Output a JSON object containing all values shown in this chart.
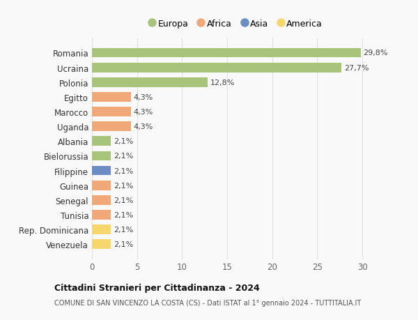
{
  "categories": [
    "Venezuela",
    "Rep. Dominicana",
    "Tunisia",
    "Senegal",
    "Guinea",
    "Filippine",
    "Bielorussia",
    "Albania",
    "Uganda",
    "Marocco",
    "Egitto",
    "Polonia",
    "Ucraina",
    "Romania"
  ],
  "values": [
    2.1,
    2.1,
    2.1,
    2.1,
    2.1,
    2.1,
    2.1,
    2.1,
    4.3,
    4.3,
    4.3,
    12.8,
    27.7,
    29.8
  ],
  "labels": [
    "2,1%",
    "2,1%",
    "2,1%",
    "2,1%",
    "2,1%",
    "2,1%",
    "2,1%",
    "2,1%",
    "4,3%",
    "4,3%",
    "4,3%",
    "12,8%",
    "27,7%",
    "29,8%"
  ],
  "colors": [
    "#f5d76e",
    "#f5d76e",
    "#f0a878",
    "#f0a878",
    "#f0a878",
    "#6b8dc4",
    "#a8c47a",
    "#a8c47a",
    "#f0a878",
    "#f0a878",
    "#f0a878",
    "#a8c47a",
    "#a8c47a",
    "#a8c47a"
  ],
  "legend": [
    {
      "label": "Europa",
      "color": "#a8c47a"
    },
    {
      "label": "Africa",
      "color": "#f0a878"
    },
    {
      "label": "Asia",
      "color": "#6b8dc4"
    },
    {
      "label": "America",
      "color": "#f5d76e"
    }
  ],
  "xlim": [
    0,
    32
  ],
  "xticks": [
    0,
    5,
    10,
    15,
    20,
    25,
    30
  ],
  "title": "Cittadini Stranieri per Cittadinanza - 2024",
  "subtitle": "COMUNE DI SAN VINCENZO LA COSTA (CS) - Dati ISTAT al 1° gennaio 2024 - TUTTITALIA.IT",
  "background_color": "#f9f9f9",
  "grid_color": "#e0e0e0"
}
